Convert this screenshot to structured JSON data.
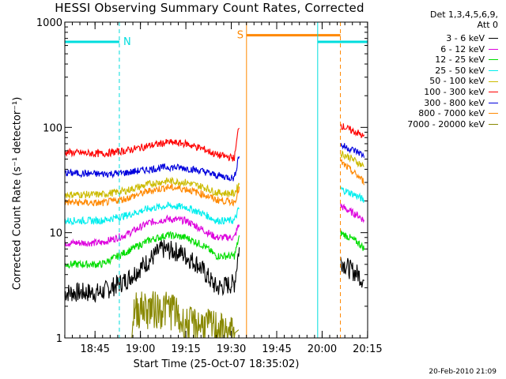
{
  "header": {
    "title": "HESSI Observing Summary Count Rates, Corrected",
    "detectors_line1": "Det 1,3,4,5,6,9,",
    "detectors_line2": "Att 0"
  },
  "footer": {
    "timestamp": "20-Feb-2010 21:09"
  },
  "chart_data": {
    "type": "line",
    "title": "HESSI Observing Summary Count Rates, Corrected",
    "xlabel": "Start Time (25-Oct-07 18:35:02)",
    "ylabel": "Corrected Count Rate (s⁻¹ detector⁻¹)",
    "yscale": "log",
    "ylim": [
      1,
      1000
    ],
    "xlim_minutes": [
      0,
      100
    ],
    "x_ticks": [
      {
        "label": "18:45",
        "min": 9.97
      },
      {
        "label": "19:00",
        "min": 24.97
      },
      {
        "label": "19:15",
        "min": 39.97
      },
      {
        "label": "19:30",
        "min": 54.97
      },
      {
        "label": "19:45",
        "min": 69.97
      },
      {
        "label": "20:00",
        "min": 84.97
      },
      {
        "label": "20:15",
        "min": 99.97
      }
    ],
    "y_ticks": [
      {
        "label": "1",
        "value": 1
      },
      {
        "label": "10",
        "value": 10
      },
      {
        "label": "100",
        "value": 100
      },
      {
        "label": "1000",
        "value": 1000
      }
    ],
    "legend_position": "right",
    "series": [
      {
        "name": "3 - 6 keV",
        "color": "#000000",
        "points": [
          [
            0,
            2.7
          ],
          [
            12,
            2.7
          ],
          [
            20,
            3.5
          ],
          [
            28,
            5.5
          ],
          [
            32,
            7
          ],
          [
            38,
            6.5
          ],
          [
            44,
            5
          ],
          [
            50,
            3
          ],
          [
            56,
            3.3
          ],
          [
            57.5,
            7
          ],
          [
            91,
            5.5
          ],
          [
            94,
            4.5
          ],
          [
            97,
            4
          ],
          [
            99,
            3.4
          ]
        ]
      },
      {
        "name": "6 - 12 keV",
        "color": "#dd00dd",
        "points": [
          [
            0,
            8
          ],
          [
            12,
            8
          ],
          [
            20,
            9.5
          ],
          [
            28,
            12.5
          ],
          [
            34,
            13.5
          ],
          [
            40,
            13
          ],
          [
            46,
            10.5
          ],
          [
            50,
            9
          ],
          [
            56,
            9
          ],
          [
            57.5,
            12
          ],
          [
            91,
            18
          ],
          [
            94,
            16
          ],
          [
            97,
            14.5
          ],
          [
            99,
            13
          ]
        ]
      },
      {
        "name": "12 - 25 keV",
        "color": "#00dd00",
        "points": [
          [
            0,
            5
          ],
          [
            12,
            5
          ],
          [
            20,
            6.5
          ],
          [
            28,
            8.5
          ],
          [
            34,
            9.5
          ],
          [
            40,
            9
          ],
          [
            46,
            7.5
          ],
          [
            50,
            6
          ],
          [
            56,
            6
          ],
          [
            57.5,
            9
          ],
          [
            91,
            10
          ],
          [
            94,
            9
          ],
          [
            97,
            8
          ],
          [
            99,
            7
          ]
        ]
      },
      {
        "name": "25 - 50 keV",
        "color": "#00eeee",
        "points": [
          [
            0,
            13
          ],
          [
            12,
            13
          ],
          [
            20,
            14.5
          ],
          [
            28,
            17
          ],
          [
            34,
            18
          ],
          [
            40,
            17.5
          ],
          [
            46,
            15
          ],
          [
            50,
            13
          ],
          [
            56,
            13
          ],
          [
            57.5,
            17
          ],
          [
            91,
            26
          ],
          [
            94,
            24
          ],
          [
            97,
            22
          ],
          [
            99,
            20
          ]
        ]
      },
      {
        "name": "50 - 100 keV",
        "color": "#ccbb00",
        "points": [
          [
            0,
            23
          ],
          [
            12,
            23
          ],
          [
            20,
            25
          ],
          [
            28,
            29
          ],
          [
            34,
            31
          ],
          [
            40,
            30
          ],
          [
            46,
            27
          ],
          [
            50,
            24
          ],
          [
            56,
            23.5
          ],
          [
            57.5,
            29
          ],
          [
            91,
            57
          ],
          [
            94,
            52
          ],
          [
            97,
            46
          ],
          [
            99,
            42
          ]
        ]
      },
      {
        "name": "100 - 300 keV",
        "color": "#ff0000",
        "points": [
          [
            0,
            58
          ],
          [
            12,
            56
          ],
          [
            20,
            60
          ],
          [
            28,
            67
          ],
          [
            34,
            72
          ],
          [
            40,
            70
          ],
          [
            46,
            62
          ],
          [
            50,
            55
          ],
          [
            56,
            51
          ],
          [
            57.5,
            105
          ],
          [
            91,
            105
          ],
          [
            94,
            95
          ],
          [
            97,
            88
          ],
          [
            99,
            80
          ]
        ]
      },
      {
        "name": "300 - 800 keV",
        "color": "#0000dd",
        "points": [
          [
            0,
            37
          ],
          [
            12,
            36
          ],
          [
            20,
            37
          ],
          [
            28,
            40
          ],
          [
            34,
            42
          ],
          [
            40,
            41
          ],
          [
            46,
            38
          ],
          [
            50,
            35
          ],
          [
            56,
            33
          ],
          [
            57.5,
            55
          ],
          [
            91,
            68
          ],
          [
            94,
            63
          ],
          [
            97,
            58
          ],
          [
            99,
            53
          ]
        ]
      },
      {
        "name": "800 - 7000 keV",
        "color": "#ff8800",
        "points": [
          [
            0,
            19.5
          ],
          [
            12,
            19
          ],
          [
            20,
            21
          ],
          [
            28,
            25
          ],
          [
            34,
            27
          ],
          [
            40,
            26
          ],
          [
            46,
            23
          ],
          [
            50,
            20.5
          ],
          [
            56,
            19.5
          ],
          [
            57.5,
            26
          ],
          [
            91,
            47
          ],
          [
            94,
            40
          ],
          [
            97,
            34
          ],
          [
            99,
            30
          ]
        ]
      },
      {
        "name": "7000 - 20000 keV",
        "color": "#888800",
        "points": [
          [
            0,
            1
          ],
          [
            22,
            1
          ],
          [
            23,
            1.8
          ],
          [
            36,
            1.8
          ],
          [
            38,
            1.3
          ],
          [
            50,
            1.2
          ],
          [
            54,
            1
          ],
          [
            57.5,
            1.2
          ]
        ]
      }
    ],
    "gaps_minutes": [
      [
        57.6,
        91
      ]
    ],
    "flags": [
      {
        "label": "N",
        "color": "#00dddd",
        "bar_min": [
          0,
          18
        ],
        "bar_value": 650,
        "markers_min": [
          18,
          100
        ]
      },
      {
        "label": "S",
        "color": "#ff8800",
        "bar_min": [
          60,
          91
        ],
        "bar_value": 750,
        "markers_min": [
          60,
          91
        ]
      },
      {
        "label": "",
        "color": "#00dddd",
        "bar_min": [
          83.5,
          100
        ],
        "bar_value": 650,
        "markers_min": [
          83.5
        ]
      }
    ]
  }
}
